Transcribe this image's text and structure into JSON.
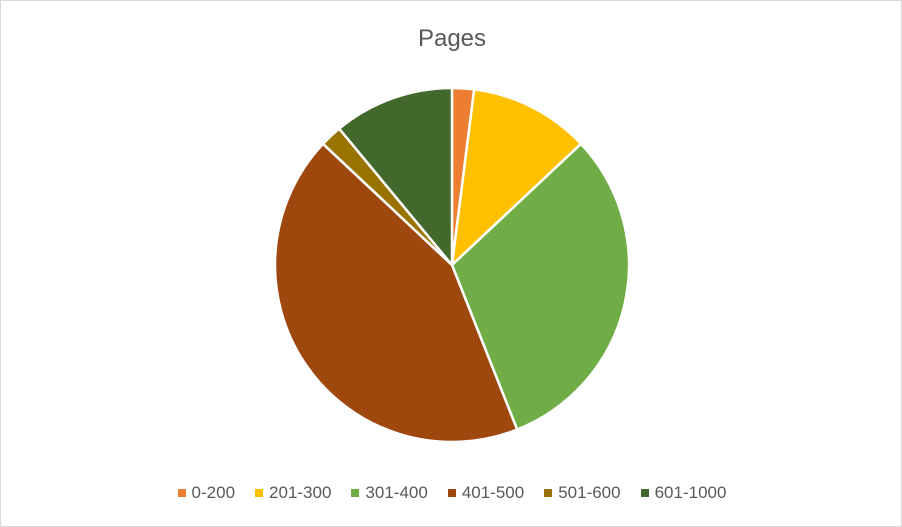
{
  "chart_data": {
    "type": "pie",
    "title": "Pages",
    "legend_position": "bottom",
    "categories": [
      "0-200",
      "201-300",
      "301-400",
      "401-500",
      "501-600",
      "601-1000"
    ],
    "values": [
      2,
      11,
      31,
      43,
      2,
      11
    ],
    "colors": [
      "#ED7D31",
      "#FFC000",
      "#70AD47",
      "#9E480E",
      "#997300",
      "#43682B"
    ]
  }
}
